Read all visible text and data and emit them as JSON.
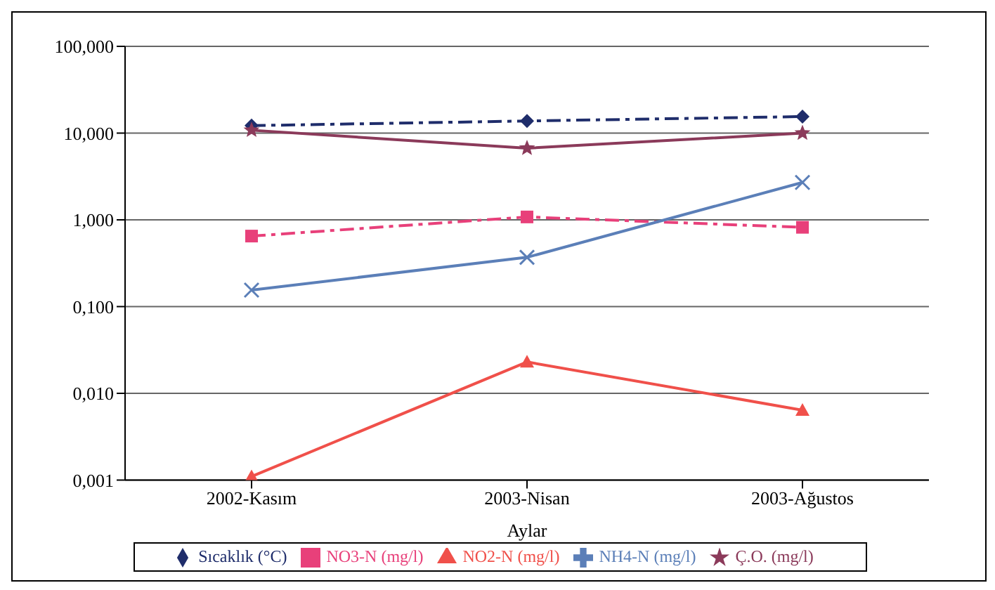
{
  "chart_data": {
    "type": "line",
    "xlabel": "Aylar",
    "categories": [
      "2002-Kasım",
      "2003-Nisan",
      "2003-Ağustos"
    ],
    "log": "y",
    "ylim": [
      0.001,
      100
    ],
    "yticks": [
      {
        "value": 0.001,
        "label": "0,001"
      },
      {
        "value": 0.01,
        "label": "0,010"
      },
      {
        "value": 0.1,
        "label": "0,100"
      },
      {
        "value": 1,
        "label": "1,000"
      },
      {
        "value": 10,
        "label": "10,000"
      },
      {
        "value": 100,
        "label": "100,000"
      }
    ],
    "grid": "y",
    "legend": "bottom",
    "series": [
      {
        "name": "Sıcaklık (°C)",
        "color": "#1f2d6b",
        "values": [
          12.2,
          13.8,
          15.5
        ],
        "marker": "diamond",
        "line_style": "dashed"
      },
      {
        "name": "NO3-N (mg/l)",
        "color": "#e8407a",
        "values": [
          0.65,
          1.08,
          0.82
        ],
        "marker": "square",
        "line_style": "dashed"
      },
      {
        "name": "NO2-N (mg/l)",
        "color": "#f0504a",
        "values": [
          0.0011,
          0.023,
          0.0064
        ],
        "marker": "triangle",
        "line_style": "solid"
      },
      {
        "name": "NH4-N (mg/l)",
        "color": "#5b7fb8",
        "values": [
          0.155,
          0.37,
          2.7
        ],
        "marker": "cross",
        "line_style": "solid"
      },
      {
        "name": "Ç.O. (mg/l)",
        "color": "#8b3a5a",
        "values": [
          10.8,
          6.7,
          10
        ],
        "marker": "star",
        "line_style": "solid"
      }
    ]
  }
}
